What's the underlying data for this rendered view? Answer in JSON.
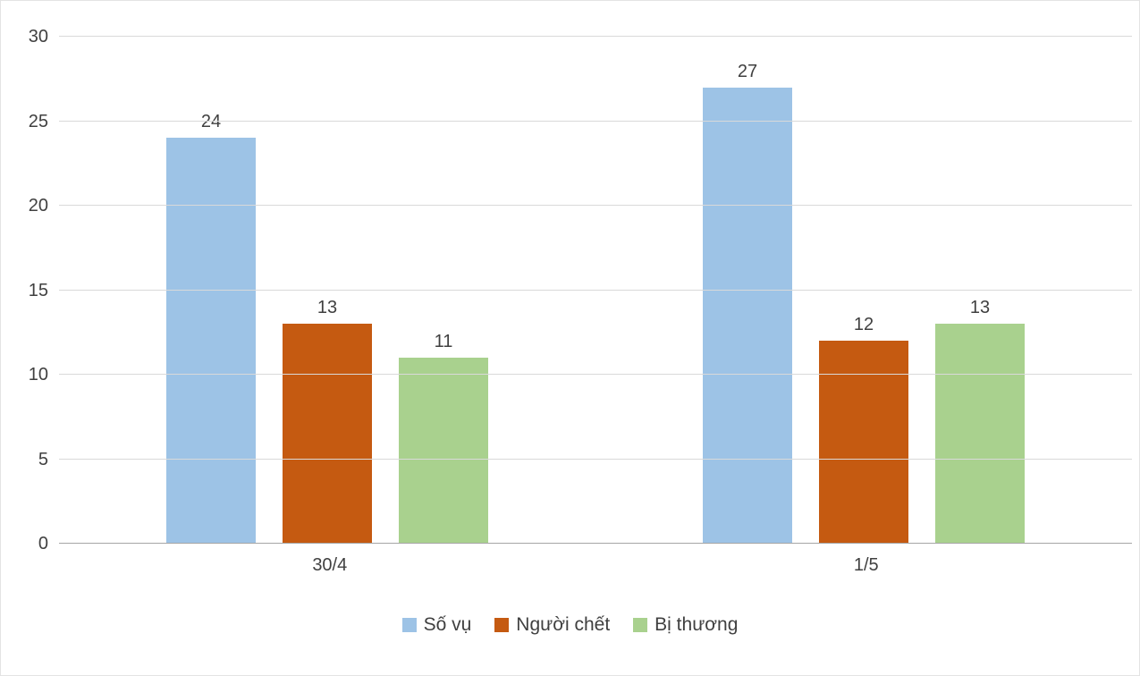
{
  "chart_data": {
    "type": "bar",
    "title": "",
    "xlabel": "",
    "ylabel": "",
    "categories": [
      "30/4",
      "1/5"
    ],
    "series": [
      {
        "name": "Số vụ",
        "color": "#9dc3e6",
        "values": [
          24,
          27
        ]
      },
      {
        "name": "Người chết",
        "color": "#c55a11",
        "values": [
          13,
          12
        ]
      },
      {
        "name": "Bị thương",
        "color": "#a9d18e",
        "values": [
          11,
          13
        ]
      }
    ],
    "ylim": [
      0,
      30
    ],
    "yticks": [
      0,
      5,
      10,
      15,
      20,
      25,
      30
    ],
    "grid": true,
    "legend_position": "bottom",
    "colors": {
      "gridline": "#d9d9d9",
      "axis_line": "#a6a6a6",
      "text": "#404040",
      "background": "#ffffff"
    }
  }
}
